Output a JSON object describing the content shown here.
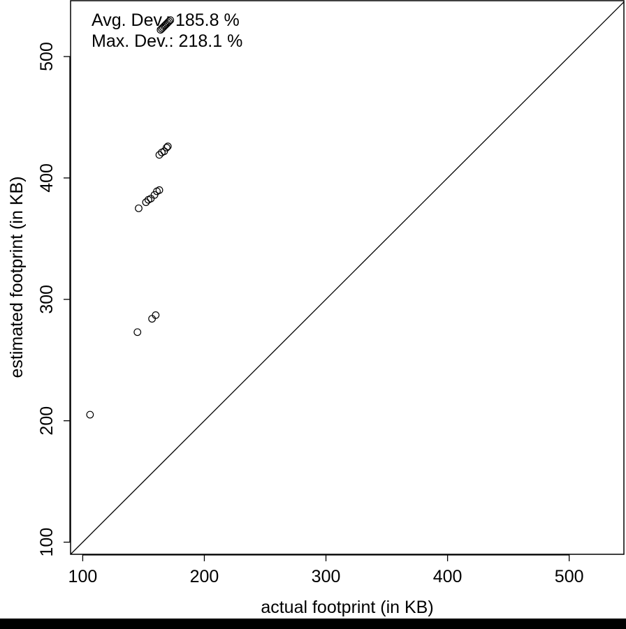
{
  "chart_data": {
    "type": "scatter",
    "xlabel": "actual footprint (in KB)",
    "ylabel": "estimated footprint (in KB)",
    "xlim": [
      90,
      545
    ],
    "ylim": [
      90,
      546
    ],
    "xticks": [
      100,
      200,
      300,
      400,
      500
    ],
    "yticks": [
      100,
      200,
      300,
      400,
      500
    ],
    "xtick_labels": [
      "100",
      "200",
      "300",
      "400",
      "500"
    ],
    "ytick_labels": [
      "100",
      "200",
      "300",
      "400",
      "500"
    ],
    "reference_line": "y = x",
    "grid": false,
    "annotations": [
      "Avg. Dev.: 185.8 %",
      "Max. Dev.: 218.1 %"
    ],
    "points": [
      {
        "x": 106,
        "y": 205
      },
      {
        "x": 145,
        "y": 273
      },
      {
        "x": 157,
        "y": 284
      },
      {
        "x": 160,
        "y": 287
      },
      {
        "x": 146,
        "y": 375
      },
      {
        "x": 152,
        "y": 380
      },
      {
        "x": 154,
        "y": 382
      },
      {
        "x": 156,
        "y": 383
      },
      {
        "x": 159,
        "y": 386
      },
      {
        "x": 161,
        "y": 389
      },
      {
        "x": 163,
        "y": 390
      },
      {
        "x": 163,
        "y": 419
      },
      {
        "x": 165,
        "y": 421
      },
      {
        "x": 167,
        "y": 422
      },
      {
        "x": 169,
        "y": 425
      },
      {
        "x": 170,
        "y": 426
      },
      {
        "x": 164,
        "y": 522
      },
      {
        "x": 165,
        "y": 523
      },
      {
        "x": 166,
        "y": 524
      },
      {
        "x": 167,
        "y": 525
      },
      {
        "x": 168,
        "y": 526
      },
      {
        "x": 169,
        "y": 527
      },
      {
        "x": 170,
        "y": 528
      },
      {
        "x": 171,
        "y": 529
      },
      {
        "x": 172,
        "y": 530
      }
    ]
  }
}
